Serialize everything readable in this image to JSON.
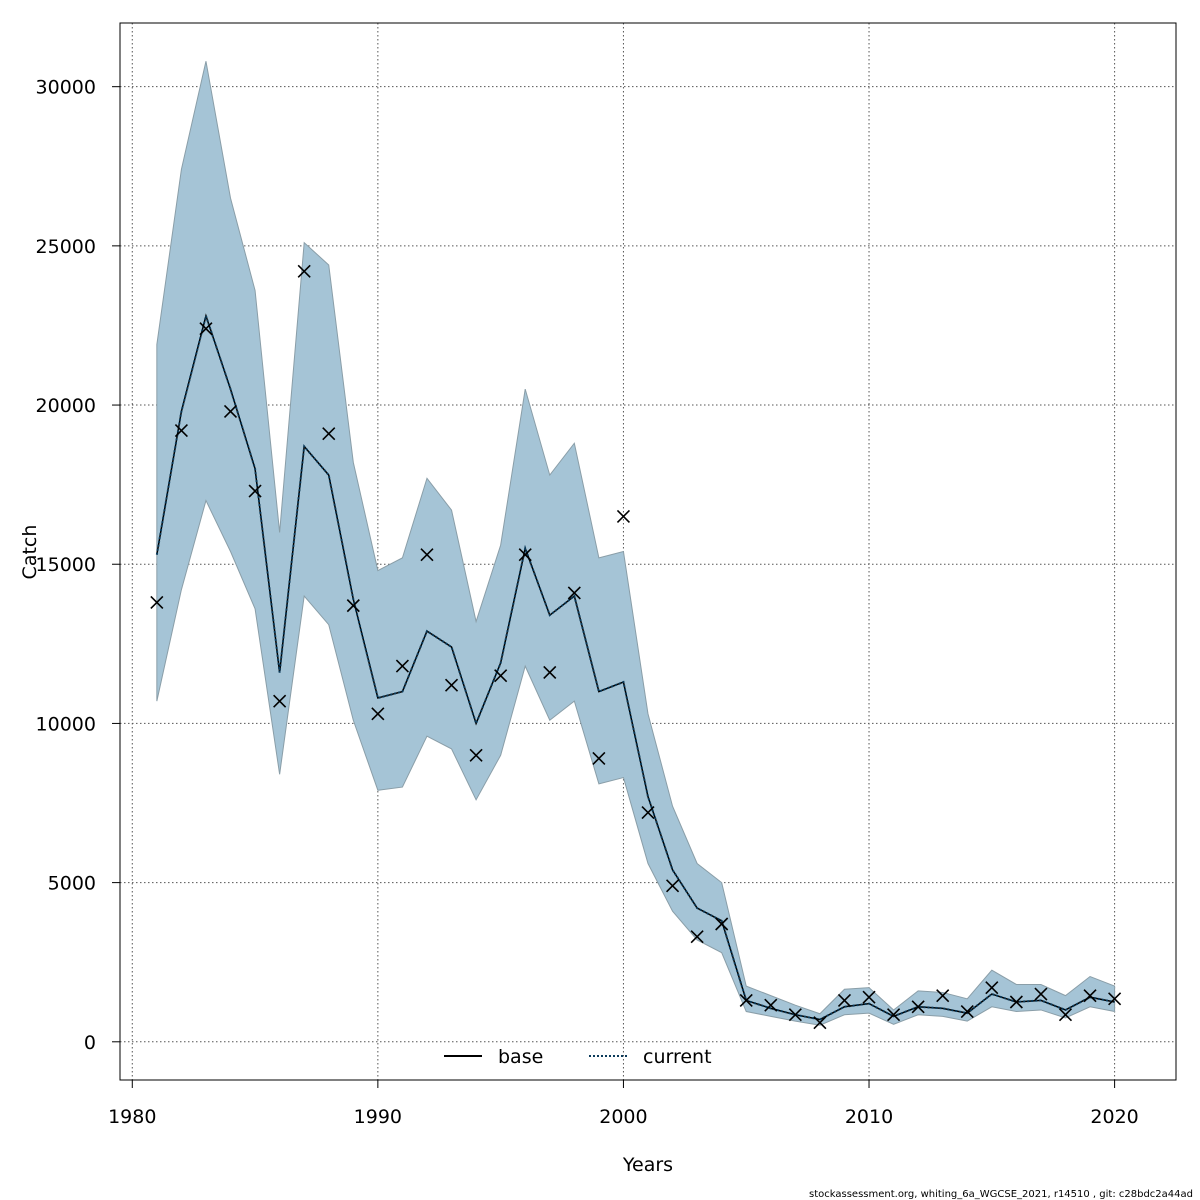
{
  "chart_data": {
    "type": "line",
    "xlabel": "Years",
    "ylabel": "Catch",
    "xlim": [
      1979.5,
      2022.5
    ],
    "ylim": [
      -1200,
      32000
    ],
    "x_ticks": [
      1980,
      1990,
      2000,
      2010,
      2020
    ],
    "y_ticks": [
      0,
      5000,
      10000,
      15000,
      20000,
      25000,
      30000
    ],
    "grid": true,
    "legend_position": "bottom-center",
    "colors": {
      "band": "#a5c4d6",
      "band_edge": "#8a9ea8",
      "current_line": "#0b3b5b",
      "base_line": "#000000",
      "observed": "#000000",
      "grid": "#555555"
    },
    "x": [
      1981,
      1982,
      1983,
      1984,
      1985,
      1986,
      1987,
      1988,
      1989,
      1990,
      1991,
      1992,
      1993,
      1994,
      1995,
      1996,
      1997,
      1998,
      1999,
      2000,
      2001,
      2002,
      2003,
      2004,
      2005,
      2006,
      2007,
      2008,
      2009,
      2010,
      2011,
      2012,
      2013,
      2014,
      2015,
      2016,
      2017,
      2018,
      2019,
      2020
    ],
    "series": [
      {
        "name": "base",
        "values": [
          15300,
          19800,
          22800,
          20500,
          18000,
          11600,
          18700,
          17800,
          13900,
          10800,
          11000,
          12900,
          12400,
          10000,
          11900,
          15500,
          13400,
          14000,
          11000,
          11300,
          7700,
          5400,
          4200,
          3800,
          1300,
          1050,
          850,
          700,
          1100,
          1200,
          800,
          1100,
          1050,
          900,
          1500,
          1250,
          1300,
          1000,
          1400,
          1250
        ]
      },
      {
        "name": "current",
        "values": [
          15300,
          19800,
          22800,
          20500,
          18000,
          11600,
          18700,
          17800,
          13900,
          10800,
          11000,
          12900,
          12400,
          10000,
          11900,
          15500,
          13400,
          14000,
          11000,
          11300,
          7700,
          5400,
          4200,
          3800,
          1300,
          1050,
          850,
          700,
          1100,
          1200,
          800,
          1100,
          1050,
          900,
          1500,
          1250,
          1300,
          1000,
          1400,
          1250
        ]
      }
    ],
    "confidence_band": {
      "upper": [
        21900,
        27400,
        30800,
        26500,
        23600,
        16000,
        25100,
        24400,
        18200,
        14800,
        15200,
        17700,
        16700,
        13200,
        15600,
        20500,
        17800,
        18800,
        15200,
        15400,
        10300,
        7400,
        5600,
        5000,
        1750,
        1450,
        1150,
        880,
        1650,
        1700,
        1000,
        1600,
        1550,
        1350,
        2250,
        1800,
        1800,
        1450,
        2050,
        1750
      ],
      "lower": [
        10700,
        14200,
        17000,
        15400,
        13600,
        8400,
        14000,
        13100,
        10100,
        7900,
        8000,
        9600,
        9200,
        7600,
        9000,
        11800,
        10100,
        10700,
        8100,
        8300,
        5600,
        4100,
        3200,
        2800,
        950,
        800,
        650,
        520,
        850,
        900,
        550,
        850,
        800,
        650,
        1100,
        950,
        1000,
        750,
        1100,
        950
      ]
    },
    "observed": [
      13800,
      19200,
      22400,
      19800,
      17300,
      10700,
      24200,
      19100,
      13700,
      10300,
      11800,
      15300,
      11200,
      9000,
      11500,
      15300,
      11600,
      14100,
      8900,
      16500,
      7200,
      4900,
      3300,
      3700,
      1300,
      1150,
      850,
      600,
      1300,
      1400,
      850,
      1100,
      1450,
      950,
      1700,
      1250,
      1500,
      850,
      1450,
      1350
    ],
    "legend": [
      {
        "label": "base",
        "style": "solid"
      },
      {
        "label": "current",
        "style": "dotted"
      }
    ]
  },
  "footnote": "stockassessment.org, whiting_6a_WGCSE_2021, r14510 , git: c28bdc2a44ad"
}
